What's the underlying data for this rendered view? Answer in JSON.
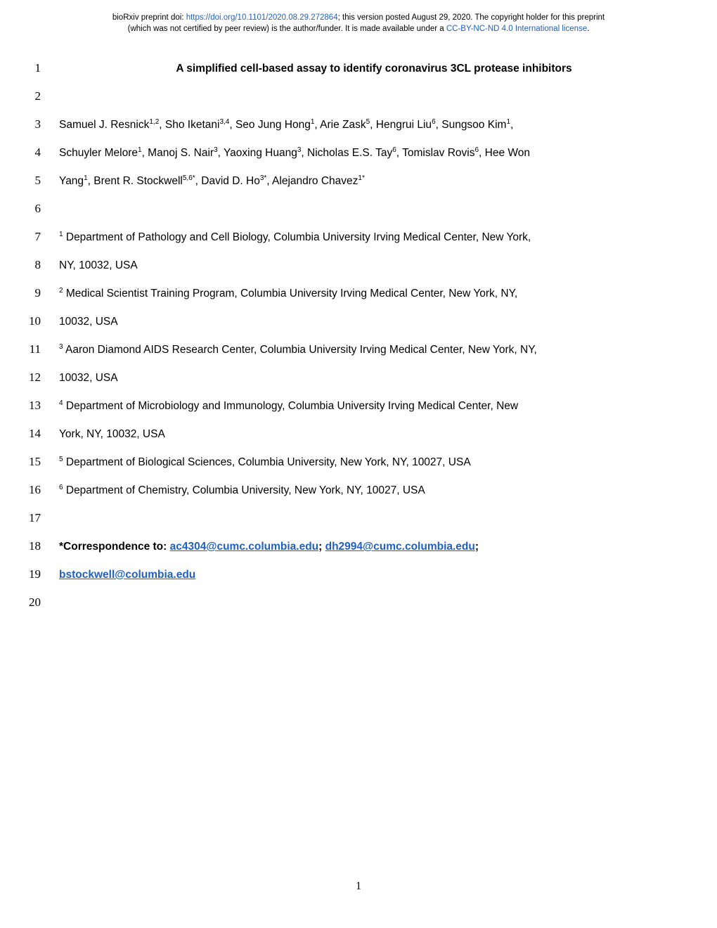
{
  "header": {
    "prefix": "bioRxiv preprint doi: ",
    "doi_url": "https://doi.org/10.1101/2020.08.29.272864",
    "mid1": "; this version posted August 29, 2020. The copyright holder for this preprint",
    "line2_prefix": "(which was not certified by peer review) is the author/funder. It is made available under a ",
    "license_text": "CC-BY-NC-ND 4.0 International license",
    "line2_suffix": "."
  },
  "lines": [
    {
      "n": "1",
      "type": "title",
      "text": "A simplified cell-based assay to identify coronavirus 3CL protease inhibitors"
    },
    {
      "n": "2",
      "type": "empty"
    },
    {
      "n": "3",
      "type": "authors1"
    },
    {
      "n": "4",
      "type": "authors2"
    },
    {
      "n": "5",
      "type": "authors3"
    },
    {
      "n": "6",
      "type": "empty"
    },
    {
      "n": "7",
      "type": "aff1a"
    },
    {
      "n": "8",
      "type": "aff1b"
    },
    {
      "n": "9",
      "type": "aff2a"
    },
    {
      "n": "10",
      "type": "aff2b"
    },
    {
      "n": "11",
      "type": "aff3a"
    },
    {
      "n": "12",
      "type": "aff3b"
    },
    {
      "n": "13",
      "type": "aff4a"
    },
    {
      "n": "14",
      "type": "aff4b"
    },
    {
      "n": "15",
      "type": "aff5"
    },
    {
      "n": "16",
      "type": "aff6"
    },
    {
      "n": "17",
      "type": "empty"
    },
    {
      "n": "18",
      "type": "corr1"
    },
    {
      "n": "19",
      "type": "corr2"
    },
    {
      "n": "20",
      "type": "empty"
    }
  ],
  "authors": {
    "l3": {
      "a1": "Samuel J. Resnick",
      "s1": "1,2",
      "a2": ", Sho Iketani",
      "s2": "3,4",
      "a3": ", Seo Jung Hong",
      "s3": "1",
      "a4": ", Arie Zask",
      "s4": "5",
      "a5": ", Hengrui Liu",
      "s5": "6",
      "a6": ", Sungsoo Kim",
      "s6": "1",
      "a7": ","
    },
    "l4": {
      "a1": "Schuyler Melore",
      "s1": "1",
      "a2": ", Manoj S. Nair",
      "s2": "3",
      "a3": ", Yaoxing Huang",
      "s3": "3",
      "a4": ", Nicholas E.S. Tay",
      "s4": "6",
      "a5": ", Tomislav Rovis",
      "s5": "6",
      "a6": ", Hee Won"
    },
    "l5": {
      "a1": "Yang",
      "s1": "1",
      "a2": ", Brent R. Stockwell",
      "s2": "5,6*",
      "a3": ", David D. Ho",
      "s3": "3*",
      "a4": ", Alejandro Chavez",
      "s4": "1*"
    }
  },
  "affiliations": {
    "a1": {
      "sup": "1",
      "text_a": " Department of Pathology and Cell Biology, Columbia University Irving Medical Center, New York,",
      "text_b": "NY, 10032, USA"
    },
    "a2": {
      "sup": "2",
      "text_a": " Medical Scientist Training Program, Columbia University Irving Medical Center, New York, NY,",
      "text_b": "10032, USA"
    },
    "a3": {
      "sup": "3",
      "text_a": " Aaron Diamond AIDS Research Center, Columbia University Irving Medical Center, New York, NY,",
      "text_b": "10032, USA"
    },
    "a4": {
      "sup": "4",
      "text_a": " Department of Microbiology and Immunology, Columbia University Irving Medical Center, New",
      "text_b": "York, NY, 10032, USA"
    },
    "a5": {
      "sup": "5",
      "text": " Department of Biological Sciences, Columbia University, New York, NY, 10027, USA"
    },
    "a6": {
      "sup": "6",
      "text": " Department of Chemistry, Columbia University, New York, NY, 10027, USA"
    }
  },
  "correspondence": {
    "prefix": "*Correspondence to: ",
    "email1": "ac4304@cumc.columbia.edu",
    "sep1": "; ",
    "email2": "dh2994@cumc.columbia.edu",
    "sep2": ";",
    "email3": "bstockwell@columbia.edu"
  },
  "page_number": "1",
  "colors": {
    "link_color": "#2060c0",
    "text_color": "#000000",
    "background": "#ffffff"
  },
  "typography": {
    "header_fontsize": 11.5,
    "body_fontsize": 15.5,
    "line_number_fontsize": 17,
    "sup_fontsize": 10,
    "page_number_fontsize": 16,
    "body_font": "Arial",
    "line_number_font": "Times New Roman"
  }
}
